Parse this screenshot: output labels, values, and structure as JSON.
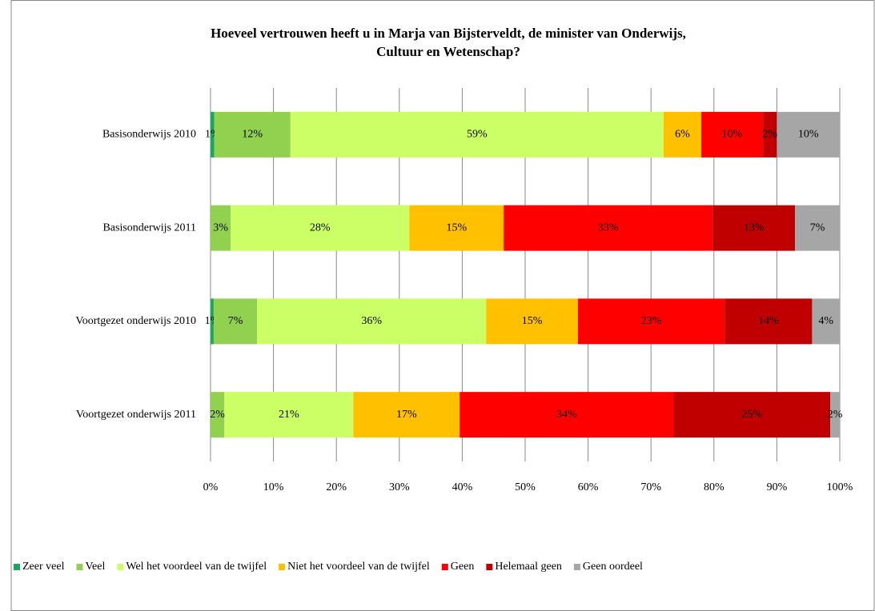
{
  "chart_data": {
    "type": "bar",
    "orientation": "horizontal",
    "stacked": true,
    "title": [
      "Hoeveel vertrouwen heeft u in Marja van Bijsterveldt, de minister van Onderwijs,",
      "Cultuur en Wetenschap?"
    ],
    "categories": [
      "Basisonderwijs 2010",
      "Basisonderwijs 2011",
      "Voortgezet onderwijs 2010",
      "Voortgezet onderwijs 2011"
    ],
    "series": [
      {
        "name": "Zeer veel",
        "color": "#1aa760",
        "values": [
          0.6,
          0,
          0.5,
          0
        ],
        "value_labels": [
          "1%",
          null,
          "1%",
          null
        ]
      },
      {
        "name": "Veel",
        "color": "#92d050",
        "values": [
          12.1,
          3.2,
          6.9,
          2.2
        ],
        "value_labels": [
          "12%",
          "3%",
          "7%",
          "2%"
        ]
      },
      {
        "name": "Wel het voordeel van de twijfel",
        "color": "#ccff66",
        "values": [
          59.3,
          28.4,
          36.4,
          20.5
        ],
        "value_labels": [
          "59%",
          "28%",
          "36%",
          "21%"
        ]
      },
      {
        "name": "Niet het voordeel van de twijfel",
        "color": "#ffc000",
        "values": [
          6.0,
          15.0,
          14.6,
          16.9
        ],
        "value_labels": [
          "6%",
          "15%",
          "15%",
          "17%"
        ]
      },
      {
        "name": "Geen",
        "color": "#ff0000",
        "values": [
          9.8,
          33.2,
          23.3,
          34.0
        ],
        "value_labels": [
          "10%",
          "33%",
          "23%",
          "34%"
        ]
      },
      {
        "name": "Helemaal geen",
        "color": "#c00000",
        "values": [
          2.2,
          13.1,
          13.9,
          24.9
        ],
        "value_labels": [
          "2%",
          "13%",
          "14%",
          "25%"
        ]
      },
      {
        "name": "Geen oordeel",
        "color": "#a6a6a6",
        "values": [
          10.0,
          7.1,
          4.4,
          1.5
        ],
        "value_labels": [
          "10%",
          "7%",
          "4%",
          "2%"
        ]
      }
    ],
    "xlim": [
      0,
      100
    ],
    "xticks": [
      {
        "value": 0,
        "label": "0%"
      },
      {
        "value": 10,
        "label": "10%"
      },
      {
        "value": 20,
        "label": "20%"
      },
      {
        "value": 30,
        "label": "30%"
      },
      {
        "value": 40,
        "label": "40%"
      },
      {
        "value": 50,
        "label": "50%"
      },
      {
        "value": 60,
        "label": "60%"
      },
      {
        "value": 70,
        "label": "70%"
      },
      {
        "value": 80,
        "label": "80%"
      },
      {
        "value": 90,
        "label": "90%"
      },
      {
        "value": 100,
        "label": "100%"
      }
    ],
    "grid": true,
    "legend": "bottom"
  }
}
